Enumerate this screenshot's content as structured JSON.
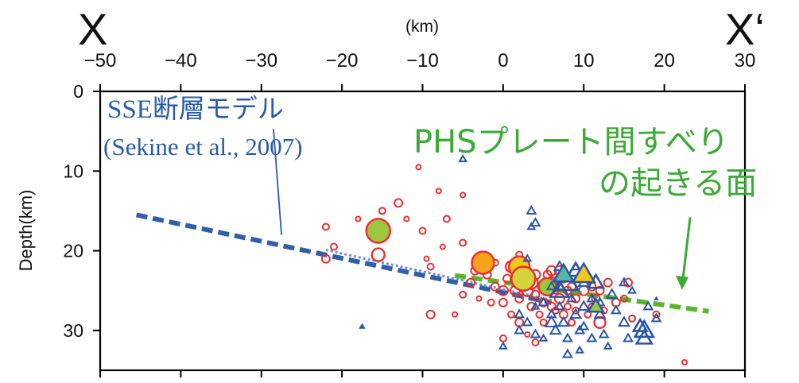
{
  "chart_data": {
    "type": "scatter",
    "title": "",
    "section_left": "X",
    "section_right": "X‘",
    "xlabel": "(km)",
    "ylabel": "Depth(km)",
    "xlim": [
      -50,
      30
    ],
    "ylim": [
      0,
      35
    ],
    "x_ticks": [
      -50,
      -40,
      -30,
      -20,
      -10,
      0,
      10,
      20,
      30
    ],
    "x_tick_labels": [
      "−50",
      "−40",
      "−30",
      "−20",
      "−10",
      "0",
      "10",
      "20",
      "30"
    ],
    "y_ticks": [
      0,
      10,
      20,
      30
    ],
    "y_tick_labels": [
      "0",
      "10",
      "20",
      "30"
    ],
    "annotations": {
      "sse_model": [
        "SSE断層モデル",
        "(Sekine et al., 2007)"
      ],
      "phs_plane": [
        "PHSプレート間すべり",
        "の起きる面"
      ]
    },
    "colors": {
      "sse_line": "#2f5fa8",
      "phs_line": "#5ab52e",
      "earthquake": "#e83030",
      "lfe_triangle": "#2a55a5",
      "text_blue": "#2a5ba8",
      "text_green": "#3aaa35"
    },
    "lines": [
      {
        "name": "SSE fault model",
        "style": "thick-dashed",
        "color": "#2f5fa8",
        "x": [
          -45.5,
          6
        ],
        "y": [
          15.5,
          26.5
        ]
      },
      {
        "name": "SSE fault model extension",
        "style": "thin-dotted",
        "color": "#6b8ecf",
        "x": [
          -22,
          6
        ],
        "y": [
          19.9,
          26.2
        ]
      },
      {
        "name": "PHS plate interface",
        "style": "thick-dashed",
        "color": "#5ab52e",
        "x": [
          -6,
          25.5
        ],
        "y": [
          23.1,
          27.6
        ]
      }
    ],
    "leader_lines": [
      {
        "name": "sse-leader",
        "x": [
          -28.5,
          -27.5
        ],
        "y": [
          4.7,
          18.0
        ]
      },
      {
        "name": "phs-leader",
        "x": [
          23.2,
          22.2
        ],
        "y": [
          15.8,
          24.5
        ],
        "arrow": true
      }
    ],
    "series": [
      {
        "kind": "earthquake_open_circles",
        "points": [
          [
            -10.5,
            9.5
          ],
          [
            -8,
            12.5
          ],
          [
            -5,
            13
          ],
          [
            -10,
            17.5
          ],
          [
            -15,
            15
          ],
          [
            -21,
            19.5
          ],
          [
            -22,
            17
          ],
          [
            -18,
            16
          ],
          [
            -16,
            18
          ],
          [
            -13,
            14
          ],
          [
            -12,
            16
          ],
          [
            -9.5,
            21
          ],
          [
            -9,
            22
          ],
          [
            -9,
            28
          ],
          [
            -22,
            21
          ],
          [
            -15.5,
            20.5
          ],
          [
            -7.5,
            19.5
          ],
          [
            -7,
            16
          ],
          [
            -5,
            19
          ],
          [
            -3.5,
            22.5
          ],
          [
            -5,
            25.5
          ],
          [
            -4,
            24
          ],
          [
            -2,
            23
          ],
          [
            -1,
            24.5
          ],
          [
            0,
            25
          ],
          [
            0,
            26.5
          ],
          [
            1,
            22
          ],
          [
            1.5,
            23.5
          ],
          [
            2,
            26
          ],
          [
            2.5,
            24.5
          ],
          [
            3,
            22.5
          ],
          [
            3,
            25
          ],
          [
            3.5,
            27
          ],
          [
            4,
            25.5
          ],
          [
            4,
            23
          ],
          [
            4.5,
            28
          ],
          [
            5,
            26.5
          ],
          [
            5.5,
            24
          ],
          [
            5,
            29
          ],
          [
            6,
            22.5
          ],
          [
            6,
            27
          ],
          [
            6.5,
            25
          ],
          [
            7,
            26
          ],
          [
            7.5,
            28
          ],
          [
            7.5,
            23.5
          ],
          [
            8,
            27
          ],
          [
            8.5,
            24.5
          ],
          [
            8.5,
            29
          ],
          [
            9,
            26
          ],
          [
            9.5,
            23.5
          ],
          [
            10,
            25
          ],
          [
            10.5,
            28
          ],
          [
            11,
            24.5
          ],
          [
            11.5,
            26
          ],
          [
            12,
            25
          ],
          [
            12.5,
            27.5
          ],
          [
            13,
            24
          ],
          [
            14,
            26.5
          ],
          [
            15,
            26
          ],
          [
            15.5,
            24
          ],
          [
            16,
            28.5
          ],
          [
            19,
            28
          ],
          [
            22.5,
            34
          ],
          [
            6,
            24
          ],
          [
            7,
            22.5
          ],
          [
            2,
            29
          ],
          [
            1,
            28
          ],
          [
            -1.5,
            26.5
          ],
          [
            3,
            30.5
          ],
          [
            0,
            31
          ],
          [
            -3,
            26
          ],
          [
            -6,
            28
          ],
          [
            4,
            31.5
          ],
          [
            -2,
            22
          ],
          [
            2.5,
            22
          ],
          [
            5.5,
            23
          ],
          [
            6.5,
            27.5
          ],
          [
            8,
            25
          ],
          [
            9,
            27.5
          ],
          [
            10,
            23.5
          ],
          [
            11,
            27
          ],
          [
            12,
            29
          ],
          [
            3.5,
            24
          ],
          [
            1.5,
            25
          ],
          [
            0.5,
            23.5
          ],
          [
            -1,
            21.5
          ],
          [
            2,
            20.5
          ]
        ],
        "sizes": [
          3,
          3,
          3,
          4,
          4,
          4,
          4,
          3,
          3,
          5,
          3,
          3,
          4,
          5,
          5,
          8,
          3,
          4,
          4,
          5,
          4,
          5,
          5,
          5,
          6,
          5,
          7,
          6,
          5,
          6,
          5,
          7,
          5,
          5,
          6,
          4,
          5,
          5,
          4,
          6,
          5,
          4,
          6,
          5,
          5,
          4,
          5,
          4,
          5,
          4,
          6,
          4,
          5,
          5,
          5,
          4,
          5,
          5,
          4,
          5,
          4,
          4,
          3,
          7,
          6,
          5,
          4,
          4,
          3,
          4,
          3,
          3,
          4,
          6,
          5,
          5,
          4,
          5,
          4,
          4,
          4,
          7,
          8,
          6,
          5,
          4
        ]
      },
      {
        "kind": "earthquake_filled_circles",
        "points": [
          [
            -15.5,
            17.5
          ],
          [
            -2.5,
            21.5
          ],
          [
            2,
            22
          ],
          [
            2.5,
            23.5
          ],
          [
            5.5,
            24.5
          ]
        ],
        "sizes": [
          15,
          14,
          13,
          15,
          11
        ],
        "fills": [
          "#9dc640",
          "#f7a21b",
          "#f5c61c",
          "#d4d43a",
          "#9dc640"
        ]
      },
      {
        "kind": "lfe_open_triangles",
        "points": [
          [
            -5,
            8.5
          ],
          [
            3.5,
            15
          ],
          [
            4,
            16.5
          ],
          [
            3.5,
            17
          ],
          [
            3,
            21
          ],
          [
            4,
            27
          ],
          [
            3,
            29
          ],
          [
            4,
            30.5
          ],
          [
            5,
            31
          ],
          [
            6,
            28
          ],
          [
            6.5,
            30
          ],
          [
            7,
            27
          ],
          [
            7.5,
            29
          ],
          [
            8,
            31
          ],
          [
            8,
            33
          ],
          [
            8.5,
            26
          ],
          [
            9,
            28
          ],
          [
            9.5,
            30
          ],
          [
            9.5,
            32.5
          ],
          [
            10,
            27
          ],
          [
            10,
            29.5
          ],
          [
            11,
            26
          ],
          [
            11,
            31
          ],
          [
            12,
            28
          ],
          [
            12.5,
            30.5
          ],
          [
            13,
            32
          ],
          [
            14,
            27.5
          ],
          [
            15,
            29
          ],
          [
            15.5,
            31
          ],
          [
            16,
            25
          ],
          [
            17,
            29.5
          ],
          [
            17.5,
            31
          ],
          [
            18,
            27
          ],
          [
            19,
            28.5
          ],
          [
            7,
            25
          ],
          [
            8,
            24
          ],
          [
            9,
            22.5
          ],
          [
            11.5,
            24
          ],
          [
            13.5,
            25.5
          ],
          [
            15,
            24
          ],
          [
            12,
            26.5
          ],
          [
            5,
            26.5
          ],
          [
            6,
            24.5
          ],
          [
            7,
            22
          ],
          [
            9,
            22
          ],
          [
            10,
            24
          ],
          [
            17.5,
            30
          ],
          [
            6,
            29
          ],
          [
            2,
            28
          ],
          [
            0,
            32
          ],
          [
            2,
            30
          ]
        ],
        "sizes": [
          4,
          5,
          5,
          4,
          4,
          4,
          5,
          5,
          4,
          5,
          6,
          5,
          6,
          5,
          5,
          5,
          6,
          5,
          4,
          6,
          5,
          5,
          5,
          6,
          5,
          4,
          5,
          6,
          5,
          4,
          8,
          9,
          5,
          5,
          11,
          13,
          9,
          9,
          6,
          5,
          5,
          5,
          5,
          6,
          5,
          6,
          11,
          7,
          5,
          4,
          5
        ]
      },
      {
        "kind": "lfe_filled_triangles",
        "points": [
          [
            7.5,
            23
          ],
          [
            10,
            23
          ],
          [
            11.5,
            27
          ],
          [
            -17.5,
            29.5
          ],
          [
            19,
            26
          ]
        ],
        "sizes": [
          12,
          13,
          9,
          4,
          3
        ],
        "fills": [
          "#55b7a0",
          "#f7c51e",
          "#9dc640",
          "#2a55a5",
          "#2a55a5"
        ]
      }
    ]
  }
}
